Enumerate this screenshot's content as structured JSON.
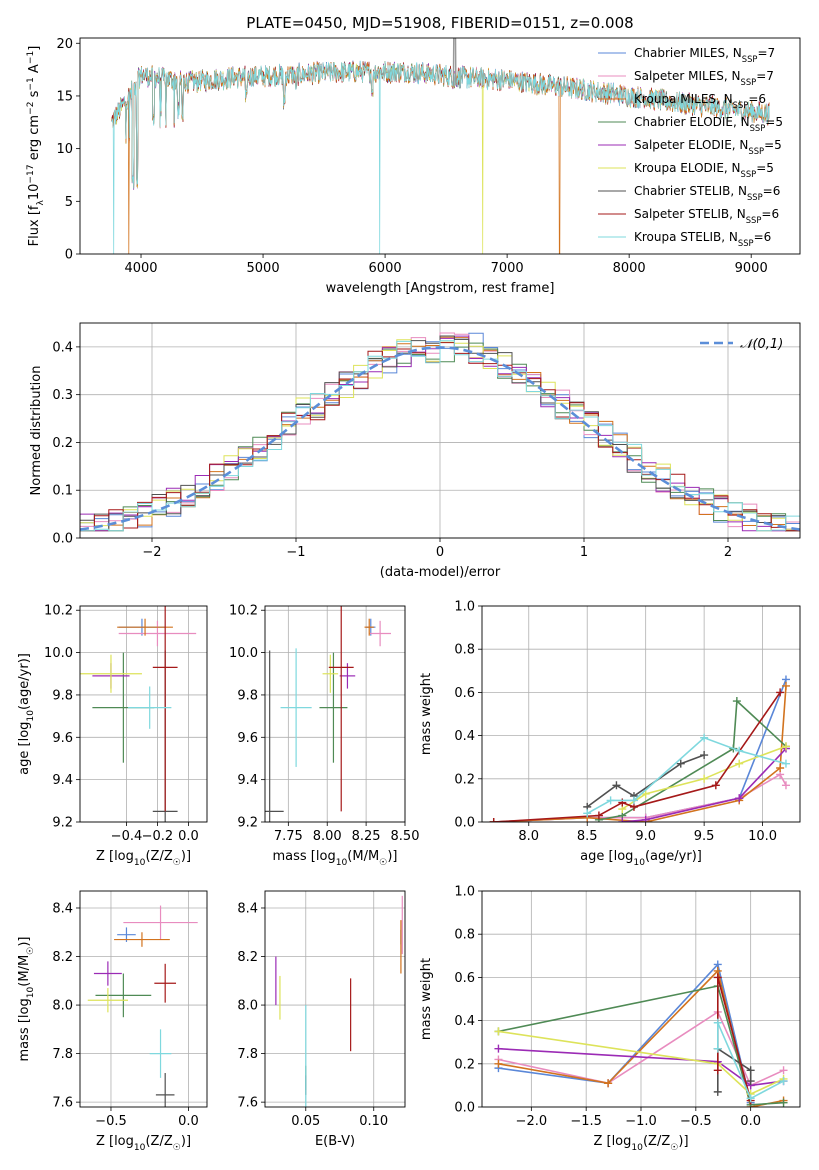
{
  "figure_title": "PLATE=0450, MJD=51908, FIBERID=0151, z=0.008",
  "colors": [
    "#5a87d8",
    "#e88cbf",
    "#d2731e",
    "#4f8a55",
    "#9b2bb5",
    "#dde35a",
    "#505050",
    "#a51919",
    "#7fd8de"
  ],
  "legend": [
    {
      "name": "Chabrier MILES, N",
      "sub": "SSP",
      "suffix": "=7"
    },
    {
      "name": "Salpeter MILES, N",
      "sub": "SSP",
      "suffix": "=7"
    },
    {
      "name": "Kroupa MILES, N",
      "sub": "SSP",
      "suffix": "=6"
    },
    {
      "name": "Chabrier ELODIE, N",
      "sub": "SSP",
      "suffix": "=5"
    },
    {
      "name": "Salpeter ELODIE, N",
      "sub": "SSP",
      "suffix": "=5"
    },
    {
      "name": "Kroupa ELODIE, N",
      "sub": "SSP",
      "suffix": "=5"
    },
    {
      "name": "Chabrier STELIB, N",
      "sub": "SSP",
      "suffix": "=6"
    },
    {
      "name": "Salpeter STELIB, N",
      "sub": "SSP",
      "suffix": "=6"
    },
    {
      "name": "Kroupa STELIB, N",
      "sub": "SSP",
      "suffix": "=6"
    }
  ],
  "chart_data": [
    {
      "id": "spectrum",
      "type": "line",
      "title": "PLATE=0450, MJD=51908, FIBERID=0151, z=0.008",
      "xlabel": "wavelength [Angstrom, rest frame]",
      "ylabel": "Flux [f_λ 10^-17 erg cm^-2 s^-1 A^-1]",
      "xlim": [
        3500,
        9400
      ],
      "ylim": [
        0,
        20.5
      ],
      "xticks": [
        4000,
        5000,
        6000,
        7000,
        8000,
        9000
      ],
      "yticks": [
        0,
        5,
        10,
        15,
        20
      ],
      "grid": false,
      "legend_position": "top-right",
      "continuum_points": [
        [
          3760,
          12.5
        ],
        [
          3900,
          15
        ],
        [
          4000,
          17
        ],
        [
          4400,
          16.3
        ],
        [
          4800,
          16.8
        ],
        [
          5200,
          17
        ],
        [
          5700,
          17.3
        ],
        [
          6200,
          17.3
        ],
        [
          6600,
          16.8
        ],
        [
          7000,
          16.5
        ],
        [
          7500,
          15.8
        ],
        [
          8000,
          15
        ],
        [
          8500,
          14.2
        ],
        [
          9000,
          13.5
        ],
        [
          9150,
          13.3
        ]
      ],
      "absorption_lines": [
        [
          3934,
          6
        ],
        [
          3968,
          6
        ],
        [
          4102,
          12
        ],
        [
          4305,
          13
        ],
        [
          4340,
          12
        ],
        [
          4861,
          14
        ],
        [
          5175,
          13.5
        ],
        [
          5270,
          15.5
        ],
        [
          5894,
          15
        ],
        [
          6563,
          15.5
        ]
      ],
      "dropouts": [
        [
          3775,
          "cyan"
        ],
        [
          3900,
          "orange"
        ],
        [
          5955,
          "cyan"
        ],
        [
          6800,
          "yellow"
        ],
        [
          7430,
          "orange"
        ]
      ],
      "spike_wavelength": 6570
    },
    {
      "id": "residuals",
      "type": "histogram",
      "xlabel": "(data-model)/error",
      "ylabel": "Normed distribution",
      "xlim": [
        -2.5,
        2.5
      ],
      "ylim": [
        0,
        0.45
      ],
      "xticks": [
        -2,
        -1,
        0,
        1,
        2
      ],
      "yticks": [
        0.0,
        0.1,
        0.2,
        0.3,
        0.4
      ],
      "grid": true,
      "legend_position": "top-right",
      "reference_curve": {
        "label": "𝒩(0,1)",
        "mean": 0,
        "sigma": 1
      },
      "bin_width": 0.1
    },
    {
      "id": "age_vs_Z",
      "type": "scatter",
      "xlabel": "Z [log10(Z/Z☉)]",
      "ylabel": "age [log10(age/yr)]",
      "xlim": [
        -0.7,
        0.12
      ],
      "ylim": [
        9.2,
        10.22
      ],
      "xticks": [
        -0.4,
        -0.2,
        0.0
      ],
      "yticks": [
        9.2,
        9.4,
        9.6,
        9.8,
        10.0,
        10.2
      ],
      "grid": true,
      "points": [
        {
          "series": 0,
          "x": -0.3,
          "y": 10.12,
          "xerr": 0.15,
          "yerr": 0.04
        },
        {
          "series": 1,
          "x": -0.2,
          "y": 10.09,
          "xerr": 0.25,
          "yerr": 0.06
        },
        {
          "series": 2,
          "x": -0.28,
          "y": 10.12,
          "xerr": 0.18,
          "yerr": 0.04
        },
        {
          "series": 3,
          "x": -0.42,
          "y": 9.74,
          "xerr": 0.2,
          "yerr": 0.26
        },
        {
          "series": 4,
          "x": -0.5,
          "y": 9.89,
          "xerr": 0.12,
          "yerr": 0.06
        },
        {
          "series": 5,
          "x": -0.5,
          "y": 9.9,
          "xerr": 0.2,
          "yerr": 0.09
        },
        {
          "series": 6,
          "x": -0.15,
          "y": 9.25,
          "xerr": 0.08,
          "yerr": 0.76
        },
        {
          "series": 7,
          "x": -0.15,
          "y": 9.93,
          "xerr": 0.08,
          "yerr": 0.68
        },
        {
          "series": 8,
          "x": -0.25,
          "y": 9.74,
          "xerr": 0.14,
          "yerr": 0.1
        }
      ]
    },
    {
      "id": "age_vs_mass",
      "type": "scatter",
      "xlabel": "mass [log10(M/M☉)]",
      "ylabel": "",
      "xlim": [
        7.6,
        8.5
      ],
      "ylim": [
        9.2,
        10.22
      ],
      "xticks": [
        7.75,
        8.0,
        8.25,
        8.5
      ],
      "yticks": [
        9.2,
        9.4,
        9.6,
        9.8,
        10.0,
        10.2
      ],
      "grid": true,
      "points": [
        {
          "series": 0,
          "x": 8.28,
          "y": 10.12,
          "xerr": 0.03,
          "yerr": 0.04
        },
        {
          "series": 1,
          "x": 8.34,
          "y": 10.09,
          "xerr": 0.07,
          "yerr": 0.06
        },
        {
          "series": 2,
          "x": 8.27,
          "y": 10.12,
          "xerr": 0.03,
          "yerr": 0.04
        },
        {
          "series": 3,
          "x": 8.04,
          "y": 9.74,
          "xerr": 0.09,
          "yerr": 0.26
        },
        {
          "series": 4,
          "x": 8.13,
          "y": 9.89,
          "xerr": 0.05,
          "yerr": 0.06
        },
        {
          "series": 5,
          "x": 8.02,
          "y": 9.9,
          "xerr": 0.05,
          "yerr": 0.09
        },
        {
          "series": 6,
          "x": 7.63,
          "y": 9.25,
          "xerr": 0.09,
          "yerr": 0.76
        },
        {
          "series": 7,
          "x": 8.09,
          "y": 9.93,
          "xerr": 0.08,
          "yerr": 0.68
        },
        {
          "series": 8,
          "x": 7.8,
          "y": 9.74,
          "xerr": 0.1,
          "yerr": 0.28
        }
      ]
    },
    {
      "id": "weight_vs_age",
      "type": "line",
      "xlabel": "age [log10(age/yr)]",
      "ylabel": "mass weight",
      "xlim": [
        7.6,
        10.32
      ],
      "ylim": [
        0,
        1.0
      ],
      "xticks": [
        8.0,
        8.5,
        9.0,
        9.5,
        10.0
      ],
      "yticks": [
        0.0,
        0.2,
        0.4,
        0.6,
        0.8,
        1.0
      ],
      "grid": true,
      "series": [
        {
          "x": [
            7.7,
            8.5,
            9.0,
            9.8,
            10.2
          ],
          "y": [
            0.0,
            0.02,
            0.02,
            0.11,
            0.66
          ]
        },
        {
          "x": [
            7.7,
            8.5,
            9.0,
            9.8,
            10.15,
            10.2
          ],
          "y": [
            0.0,
            0.02,
            0.02,
            0.11,
            0.22,
            0.17
          ]
        },
        {
          "x": [
            7.7,
            8.5,
            9.0,
            9.8,
            10.15,
            10.2
          ],
          "y": [
            0.0,
            0.02,
            0.0,
            0.1,
            0.25,
            0.63
          ]
        },
        {
          "x": [
            8.6,
            8.8,
            9.75,
            9.78,
            10.2
          ],
          "y": [
            0.01,
            0.03,
            0.34,
            0.56,
            0.35
          ]
        },
        {
          "x": [
            8.8,
            9.0,
            9.8,
            10.2
          ],
          "y": [
            0.0,
            0.01,
            0.11,
            0.34
          ]
        },
        {
          "x": [
            8.8,
            9.0,
            9.5,
            9.8,
            10.2
          ],
          "y": [
            0.06,
            0.13,
            0.2,
            0.27,
            0.35
          ]
        },
        {
          "x": [
            8.5,
            8.75,
            8.9,
            9.3,
            9.5
          ],
          "y": [
            0.07,
            0.17,
            0.12,
            0.27,
            0.31
          ]
        },
        {
          "x": [
            7.7,
            8.6,
            8.8,
            8.9,
            9.6,
            10.15
          ],
          "y": [
            0.0,
            0.03,
            0.09,
            0.07,
            0.17,
            0.6
          ]
        },
        {
          "x": [
            8.5,
            8.7,
            8.9,
            9.5,
            9.8,
            10.2
          ],
          "y": [
            0.04,
            0.1,
            0.1,
            0.39,
            0.33,
            0.27
          ]
        }
      ]
    },
    {
      "id": "mass_vs_Z",
      "type": "scatter",
      "xlabel": "Z [log10(Z/Z☉)]",
      "ylabel": "mass [log10(M/M☉)]",
      "xlim": [
        -0.7,
        0.12
      ],
      "ylim": [
        7.58,
        8.47
      ],
      "xticks": [
        -0.5,
        0.0
      ],
      "yticks": [
        7.6,
        7.8,
        8.0,
        8.2,
        8.4
      ],
      "grid": true,
      "points": [
        {
          "series": 0,
          "x": -0.4,
          "y": 8.29,
          "xerr": 0.06,
          "yerr": 0.03
        },
        {
          "series": 1,
          "x": -0.18,
          "y": 8.34,
          "xerr": 0.24,
          "yerr": 0.07
        },
        {
          "series": 2,
          "x": -0.3,
          "y": 8.27,
          "xerr": 0.18,
          "yerr": 0.03
        },
        {
          "series": 3,
          "x": -0.42,
          "y": 8.04,
          "xerr": 0.18,
          "yerr": 0.09
        },
        {
          "series": 4,
          "x": -0.52,
          "y": 8.13,
          "xerr": 0.09,
          "yerr": 0.05
        },
        {
          "series": 5,
          "x": -0.52,
          "y": 8.02,
          "xerr": 0.13,
          "yerr": 0.05
        },
        {
          "series": 6,
          "x": -0.15,
          "y": 7.63,
          "xerr": 0.06,
          "yerr": 0.09
        },
        {
          "series": 7,
          "x": -0.15,
          "y": 8.09,
          "xerr": 0.07,
          "yerr": 0.08
        },
        {
          "series": 8,
          "x": -0.18,
          "y": 7.8,
          "xerr": 0.07,
          "yerr": 0.1
        }
      ]
    },
    {
      "id": "mass_vs_EBV",
      "type": "scatter",
      "xlabel": "E(B-V)",
      "ylabel": "",
      "xlim": [
        0.02,
        0.123
      ],
      "ylim": [
        7.58,
        8.47
      ],
      "xticks": [
        0.05,
        0.1
      ],
      "yticks": [
        7.6,
        7.8,
        8.0,
        8.2,
        8.4
      ],
      "grid": true,
      "points": [
        {
          "series": 0,
          "x": 0.12,
          "y": 8.28,
          "yerr": 0.03
        },
        {
          "series": 1,
          "x": 0.121,
          "y": 8.33,
          "yerr": 0.12
        },
        {
          "series": 2,
          "x": 0.12,
          "y": 8.24,
          "yerr": 0.11
        },
        {
          "series": 3,
          "x": 0.05,
          "y": 7.7,
          "yerr": 0.05
        },
        {
          "series": 4,
          "x": 0.028,
          "y": 8.1,
          "yerr": 0.1
        },
        {
          "series": 5,
          "x": 0.031,
          "y": 8.03,
          "yerr": 0.09
        },
        {
          "series": 6,
          "x": 0.05,
          "y": 7.67,
          "yerr": 0.04
        },
        {
          "series": 7,
          "x": 0.083,
          "y": 7.96,
          "yerr": 0.15
        },
        {
          "series": 8,
          "x": 0.05,
          "y": 7.75,
          "yerr": 0.25
        }
      ]
    },
    {
      "id": "weight_vs_Z",
      "type": "line",
      "xlabel": "Z [log10(Z/Z☉)]",
      "ylabel": "mass weight",
      "xlim": [
        -2.45,
        0.45
      ],
      "ylim": [
        0,
        1.0
      ],
      "xticks": [
        -2.0,
        -1.5,
        -1.0,
        -0.5,
        0.0
      ],
      "yticks": [
        0.0,
        0.2,
        0.4,
        0.6,
        0.8,
        1.0
      ],
      "grid": true,
      "series": [
        {
          "x": [
            -2.3,
            -1.3,
            -0.3,
            0.0
          ],
          "y": [
            0.18,
            0.11,
            0.66,
            0.02
          ]
        },
        {
          "x": [
            -2.3,
            -1.3,
            -0.3,
            0.0,
            0.3
          ],
          "y": [
            0.22,
            0.11,
            0.44,
            0.1,
            0.17
          ]
        },
        {
          "x": [
            -2.3,
            -1.3,
            -0.3,
            0.0,
            0.3
          ],
          "y": [
            0.2,
            0.11,
            0.63,
            0.0,
            0.03
          ]
        },
        {
          "x": [
            -2.3,
            -0.3,
            0.0,
            0.3
          ],
          "y": [
            0.35,
            0.56,
            0.01,
            0.02
          ]
        },
        {
          "x": [
            -2.3,
            -0.3,
            0.0,
            0.3
          ],
          "y": [
            0.27,
            0.21,
            0.1,
            0.12
          ]
        },
        {
          "x": [
            -2.3,
            -0.3,
            0.0,
            0.3
          ],
          "y": [
            0.35,
            0.2,
            0.06,
            0.13
          ]
        },
        {
          "x": [
            -0.3,
            -0.3,
            0.0,
            0.0
          ],
          "y": [
            0.07,
            0.27,
            0.17,
            0.12
          ]
        },
        {
          "x": [
            -0.3,
            -0.3,
            0.0
          ],
          "y": [
            0.17,
            0.6,
            0.03
          ]
        },
        {
          "x": [
            -0.3,
            -0.3,
            0.0,
            0.3
          ],
          "y": [
            0.27,
            0.39,
            0.04,
            0.12
          ]
        }
      ]
    }
  ]
}
